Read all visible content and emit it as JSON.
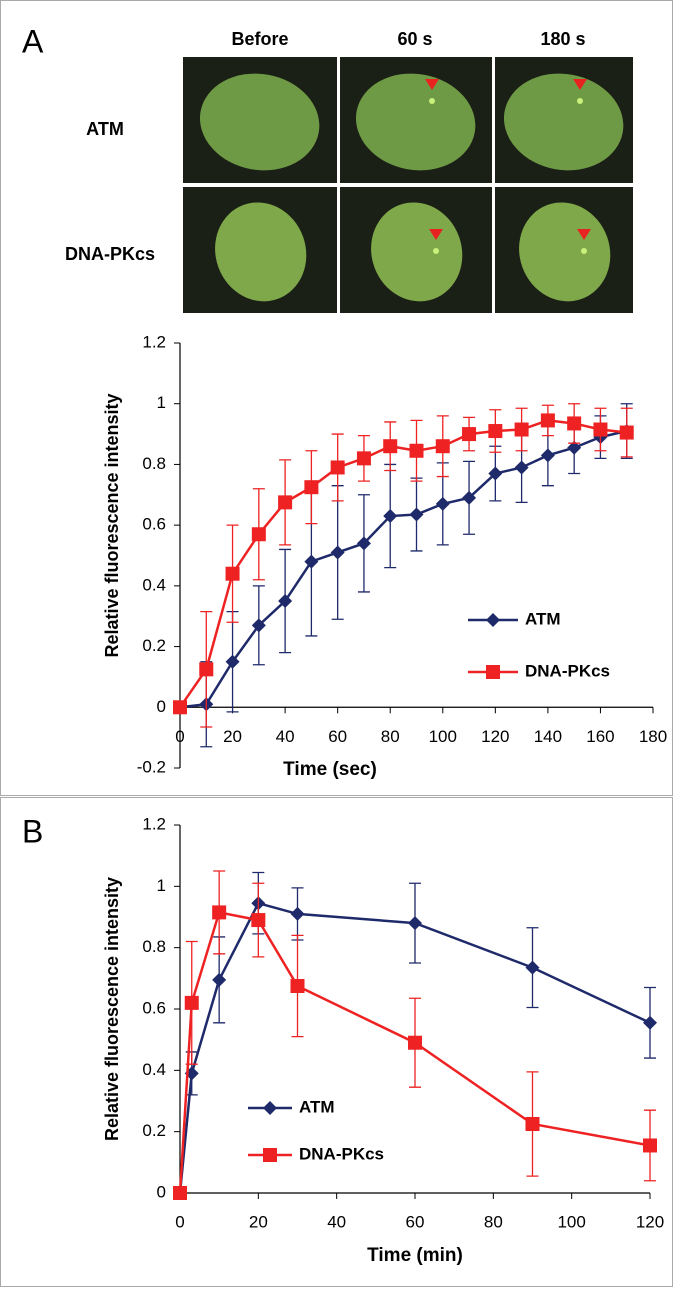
{
  "figure": {
    "panels": [
      "A",
      "B"
    ],
    "image_grid": {
      "columns": [
        "Before",
        "60 s",
        "180 s"
      ],
      "rows": [
        "ATM",
        "DNA-PKcs"
      ]
    }
  },
  "chart_data": [
    {
      "type": "line",
      "xlabel": "Time (sec)",
      "ylabel": "Relative fluorescence intensity",
      "x": [
        0,
        10,
        20,
        30,
        40,
        50,
        60,
        70,
        80,
        90,
        100,
        110,
        120,
        130,
        140,
        150,
        160,
        170
      ],
      "xlim": [
        0,
        180
      ],
      "xticks": [
        0,
        20,
        40,
        60,
        80,
        100,
        120,
        140,
        160,
        180
      ],
      "ylim": [
        -0.2,
        1.2
      ],
      "yticks": [
        -0.2,
        0,
        0.2,
        0.4,
        0.6,
        0.8,
        1,
        1.2
      ],
      "legend_position": "lower right",
      "series": [
        {
          "name": "ATM",
          "color": "#1f2a6b",
          "marker": "diamond",
          "values": [
            0,
            0.01,
            0.15,
            0.27,
            0.35,
            0.48,
            0.51,
            0.54,
            0.63,
            0.635,
            0.67,
            0.69,
            0.77,
            0.79,
            0.83,
            0.855,
            0.89,
            0.91
          ],
          "errors": [
            0,
            0.14,
            0.165,
            0.13,
            0.17,
            0.245,
            0.22,
            0.16,
            0.17,
            0.12,
            0.135,
            0.12,
            0.09,
            0.115,
            0.1,
            0.085,
            0.07,
            0.09
          ]
        },
        {
          "name": "DNA-PKcs",
          "color": "#ee2222",
          "marker": "square",
          "values": [
            0,
            0.125,
            0.44,
            0.57,
            0.675,
            0.725,
            0.79,
            0.82,
            0.86,
            0.845,
            0.86,
            0.9,
            0.91,
            0.915,
            0.945,
            0.935,
            0.915,
            0.905
          ],
          "errors": [
            0,
            0.19,
            0.16,
            0.15,
            0.14,
            0.12,
            0.11,
            0.075,
            0.08,
            0.1,
            0.1,
            0.055,
            0.07,
            0.07,
            0.05,
            0.065,
            0.07,
            0.08
          ]
        }
      ]
    },
    {
      "type": "line",
      "xlabel": "Time (min)",
      "ylabel": "Relative fluorescence intensity",
      "x": [
        0,
        3,
        10,
        20,
        30,
        60,
        90,
        120
      ],
      "xlim": [
        0,
        120
      ],
      "xticks": [
        0,
        20,
        40,
        60,
        80,
        100,
        120
      ],
      "ylim": [
        0,
        1.2
      ],
      "yticks": [
        0,
        0.2,
        0.4,
        0.6,
        0.8,
        1,
        1.2
      ],
      "legend_position": "lower left",
      "series": [
        {
          "name": "ATM",
          "color": "#1f2a6b",
          "marker": "diamond",
          "values": [
            0,
            0.39,
            0.695,
            0.945,
            0.91,
            0.88,
            0.735,
            0.555
          ],
          "errors": [
            0,
            0.07,
            0.14,
            0.1,
            0.085,
            0.13,
            0.13,
            0.115
          ]
        },
        {
          "name": "DNA-PKcs",
          "color": "#ee2222",
          "marker": "square",
          "values": [
            0,
            0.62,
            0.915,
            0.89,
            0.675,
            0.49,
            0.225,
            0.155
          ],
          "errors": [
            0,
            0.2,
            0.135,
            0.12,
            0.165,
            0.145,
            0.17,
            0.115
          ]
        }
      ]
    }
  ]
}
